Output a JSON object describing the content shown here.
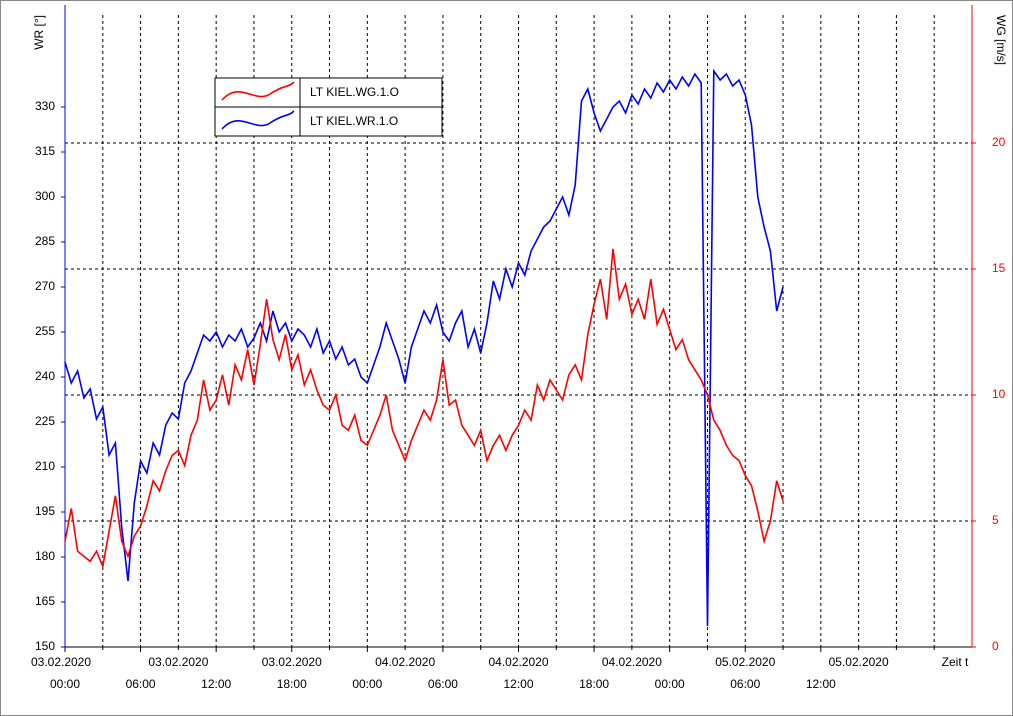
{
  "chart_data": {
    "type": "line",
    "y_title": "WR [°]",
    "y2_title": "WG [m/s]",
    "x_title": "Zeit t",
    "x": [
      0,
      0.5,
      1,
      1.5,
      2,
      2.5,
      3,
      3.5,
      4,
      4.5,
      5,
      5.5,
      6,
      6.5,
      7,
      7.5,
      8,
      8.5,
      9,
      9.5,
      10,
      10.5,
      11,
      11.5,
      12,
      12.5,
      13,
      13.5,
      14,
      14.5,
      15,
      15.5,
      16,
      16.5,
      17,
      17.5,
      18,
      18.5,
      19,
      19.5,
      20,
      20.5,
      21,
      21.5,
      22,
      22.5,
      23,
      23.5,
      24,
      24.5,
      25,
      25.5,
      26,
      26.5,
      27,
      27.5,
      28,
      28.5,
      29,
      29.5,
      30,
      30.5,
      31,
      31.5,
      32,
      32.5,
      33,
      33.5,
      34,
      34.5,
      35,
      35.5,
      36,
      36.5,
      37,
      37.5,
      38,
      38.5,
      39,
      39.5,
      40,
      40.5,
      41,
      41.5,
      42,
      42.5,
      43,
      43.5,
      44,
      44.5,
      45,
      45.5,
      46,
      46.5,
      47,
      47.5,
      48,
      48.5,
      49,
      49.5,
      50,
      50.5,
      51,
      51.5,
      52,
      52.5,
      53,
      53.5,
      54,
      54.5,
      55,
      55.5,
      56,
      56.5,
      57
    ],
    "series": [
      {
        "name": "LT KIEL.WG.1.O",
        "color": "#ff0000",
        "axis": "y2",
        "values": [
          4.2,
          5.5,
          3.8,
          3.6,
          3.4,
          3.8,
          3.2,
          4.6,
          6.0,
          4.2,
          3.6,
          4.4,
          4.8,
          5.6,
          6.6,
          6.2,
          7.0,
          7.6,
          7.8,
          7.2,
          8.4,
          9.0,
          10.6,
          9.4,
          9.8,
          10.8,
          9.6,
          11.2,
          10.6,
          11.8,
          10.4,
          12.0,
          13.8,
          12.2,
          11.4,
          12.4,
          11.0,
          11.6,
          10.4,
          11.0,
          10.2,
          9.6,
          9.4,
          10.0,
          8.8,
          8.6,
          9.2,
          8.2,
          8.0,
          8.6,
          9.2,
          10.0,
          8.6,
          8.0,
          7.4,
          8.2,
          8.8,
          9.4,
          9.0,
          9.8,
          11.4,
          9.6,
          9.8,
          8.8,
          8.4,
          8.0,
          8.6,
          7.4,
          8.0,
          8.4,
          7.8,
          8.4,
          8.8,
          9.4,
          9.0,
          10.4,
          9.8,
          10.6,
          10.2,
          9.8,
          10.8,
          11.2,
          10.6,
          12.4,
          13.6,
          14.6,
          13.0,
          15.8,
          13.8,
          14.4,
          13.2,
          13.8,
          13.0,
          14.6,
          12.8,
          13.4,
          12.6,
          11.8,
          12.2,
          11.4,
          11.0,
          10.6,
          10.0,
          9.0,
          8.6,
          8.0,
          7.6,
          7.4,
          6.8,
          6.4,
          5.4,
          4.2,
          5.0,
          6.6,
          5.8
        ]
      },
      {
        "name": "LT KIEL.WR.1.O",
        "color": "#0000ff",
        "axis": "y",
        "values": [
          245,
          238,
          242,
          233,
          236,
          226,
          230,
          214,
          218,
          190,
          172,
          198,
          212,
          208,
          218,
          214,
          224,
          228,
          226,
          238,
          242,
          248,
          254,
          252,
          255,
          250,
          254,
          252,
          256,
          250,
          253,
          258,
          252,
          262,
          255,
          258,
          252,
          256,
          254,
          250,
          256,
          248,
          252,
          246,
          250,
          244,
          246,
          240,
          238,
          244,
          250,
          258,
          252,
          246,
          238,
          250,
          256,
          262,
          258,
          264,
          255,
          252,
          258,
          262,
          250,
          256,
          248,
          258,
          272,
          266,
          276,
          270,
          278,
          274,
          282,
          286,
          290,
          292,
          296,
          300,
          294,
          304,
          332,
          336,
          328,
          322,
          326,
          330,
          332,
          328,
          334,
          331,
          336,
          333,
          338,
          335,
          339,
          336,
          340,
          337,
          341,
          338,
          157,
          342,
          339,
          341,
          337,
          339,
          334,
          324,
          300,
          290,
          282,
          262,
          270
        ]
      }
    ],
    "xlim": [
      0,
      72
    ],
    "xticks": [
      {
        "value": 0,
        "label": "00:00"
      },
      {
        "value": 6,
        "label": "06:00"
      },
      {
        "value": 12,
        "label": "12:00"
      },
      {
        "value": 18,
        "label": "18:00"
      },
      {
        "value": 24,
        "label": "00:00"
      },
      {
        "value": 30,
        "label": "06:00"
      },
      {
        "value": 36,
        "label": "12:00"
      },
      {
        "value": 42,
        "label": "18:00"
      },
      {
        "value": 48,
        "label": "00:00"
      },
      {
        "value": 54,
        "label": "06:00"
      },
      {
        "value": 60,
        "label": "12:00"
      }
    ],
    "xdates": [
      {
        "value": 0,
        "label": "03.02.2020"
      },
      {
        "value": 9,
        "label": "03.02.2020"
      },
      {
        "value": 18,
        "label": "03.02.2020"
      },
      {
        "value": 27,
        "label": "04.02.2020"
      },
      {
        "value": 36,
        "label": "04.02.2020"
      },
      {
        "value": 45,
        "label": "04.02.2020"
      },
      {
        "value": 54,
        "label": "05.02.2020"
      },
      {
        "value": 63,
        "label": "05.02.2020"
      }
    ],
    "xminorticks": [
      3,
      9,
      15,
      21,
      27,
      33,
      39,
      45,
      51,
      57,
      63,
      66,
      69
    ],
    "ylim": [
      150,
      360
    ],
    "yticks": [
      150,
      165,
      180,
      195,
      210,
      225,
      240,
      255,
      270,
      285,
      300,
      315,
      330
    ],
    "y2lim": [
      0,
      25
    ],
    "y2ticks": [
      0,
      5,
      10,
      15,
      20
    ],
    "grid": true,
    "y_color": "#0000ff",
    "y2_color": "#ff0000"
  }
}
